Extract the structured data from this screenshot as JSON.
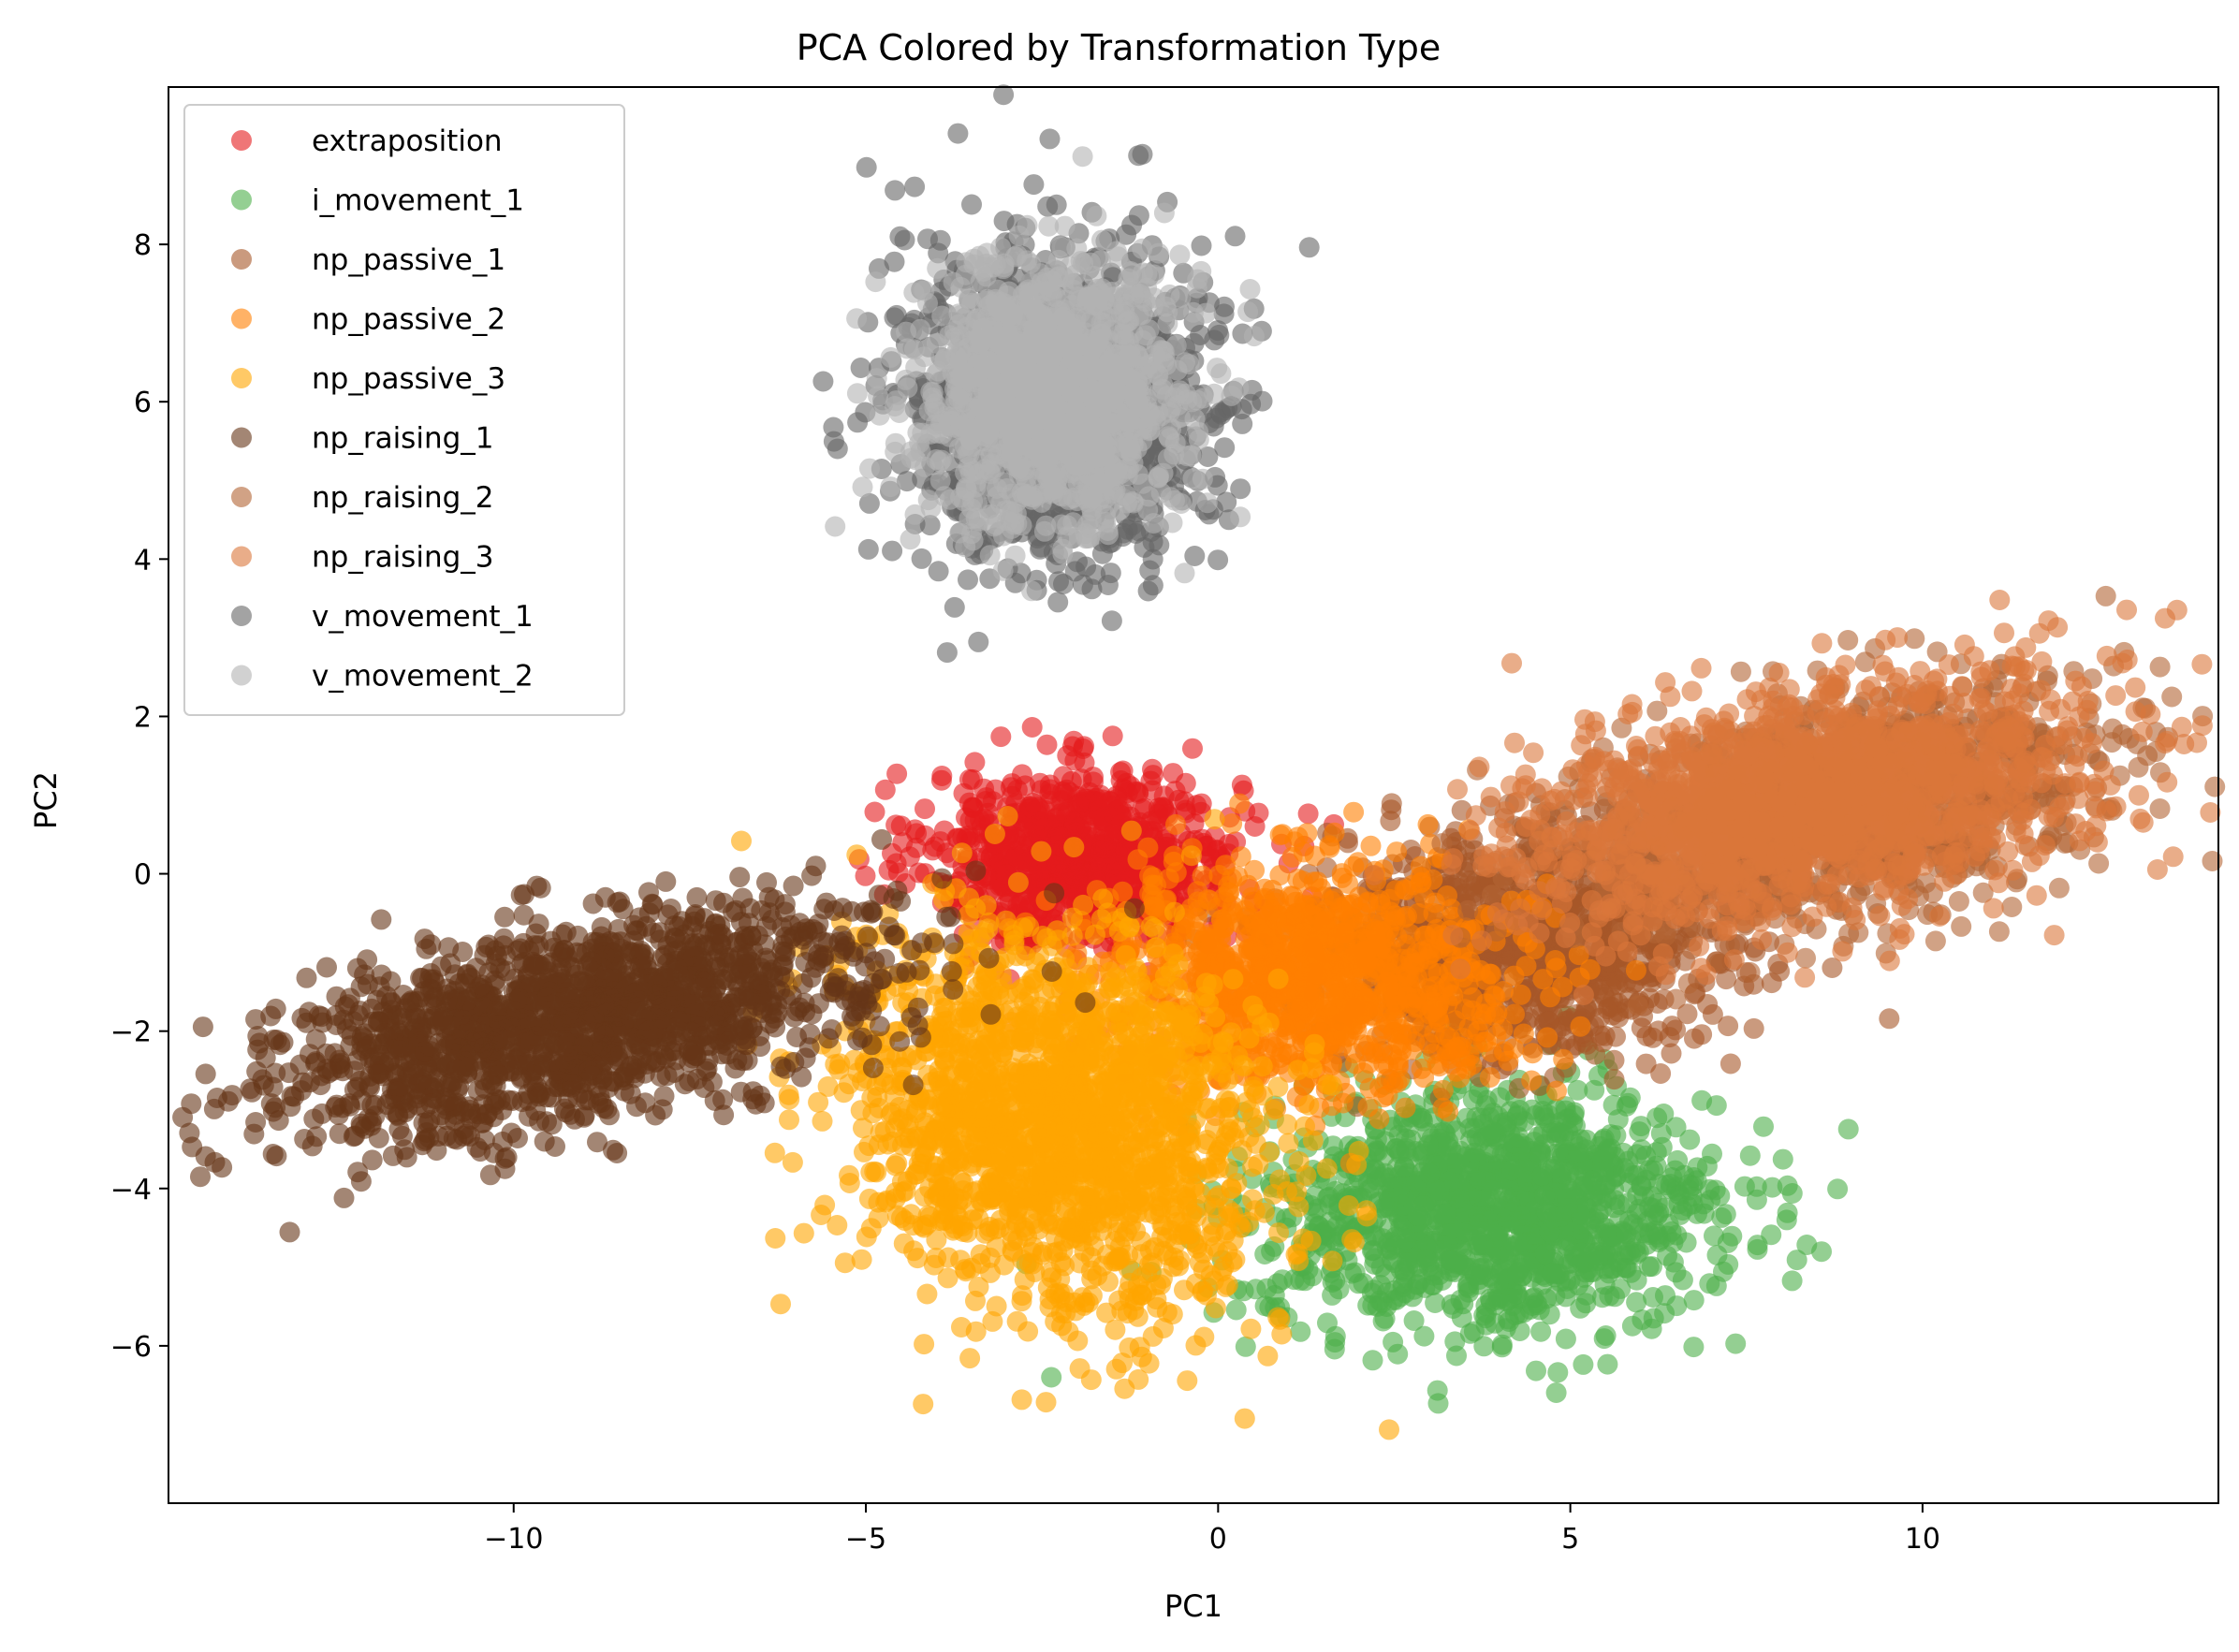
{
  "chart_data": {
    "type": "scatter",
    "title": "PCA Colored by Transformation Type",
    "xlabel": "PC1",
    "ylabel": "PC2",
    "xlim": [
      -14.9,
      14.2
    ],
    "ylim": [
      -8.0,
      10.0
    ],
    "xticks": [
      -10,
      -5,
      0,
      5,
      10
    ],
    "xtick_labels": [
      "−10",
      "−5",
      "0",
      "5",
      "10"
    ],
    "yticks": [
      -6,
      -4,
      -2,
      0,
      2,
      4,
      6,
      8
    ],
    "ytick_labels": [
      "−6",
      "−4",
      "−2",
      "0",
      "2",
      "4",
      "6",
      "8"
    ],
    "grid": false,
    "legend_position": "top-left",
    "marker_alpha": 0.6,
    "series": [
      {
        "name": "extraposition",
        "color": "#e41a1c",
        "approx_center": [
          -1.9,
          0.2
        ],
        "approx_spread": [
          1.1,
          0.55
        ],
        "approx_points": 900
      },
      {
        "name": "i_movement_1",
        "color": "#4daf4a",
        "approx_center": [
          3.9,
          -4.3
        ],
        "approx_spread": [
          1.6,
          0.75
        ],
        "approx_points": 1400
      },
      {
        "name": "np_passive_1",
        "color": "#a65628",
        "approx_center": [
          4.3,
          -0.9
        ],
        "approx_spread": [
          1.4,
          0.7
        ],
        "approx_points": 1100
      },
      {
        "name": "np_passive_2",
        "color": "#ff7f00",
        "approx_center": [
          1.3,
          -1.3
        ],
        "approx_spread": [
          1.5,
          0.7
        ],
        "approx_points": 1100
      },
      {
        "name": "np_passive_3",
        "color": "#ffa500",
        "approx_center": [
          -2.3,
          -3.2
        ],
        "approx_spread": [
          1.5,
          1.2
        ],
        "approx_points": 1800
      },
      {
        "name": "np_raising_1",
        "color": "#663517",
        "approx_center": [
          -9.2,
          -1.9
        ],
        "approx_spread": [
          2.2,
          0.6
        ],
        "approx_points": 1600
      },
      {
        "name": "np_raising_2",
        "color": "#b26433",
        "approx_center": [
          8.6,
          0.8
        ],
        "approx_spread": [
          1.9,
          0.7
        ],
        "approx_points": 1200
      },
      {
        "name": "np_raising_3",
        "color": "#db773a",
        "approx_center": [
          8.3,
          0.9
        ],
        "approx_spread": [
          2.0,
          0.7
        ],
        "approx_points": 1600
      },
      {
        "name": "v_movement_1",
        "color": "#666666",
        "approx_center": [
          -2.3,
          6.0
        ],
        "approx_spread": [
          1.1,
          1.0
        ],
        "approx_points": 1300
      },
      {
        "name": "v_movement_2",
        "color": "#b3b3b3",
        "approx_center": [
          -2.4,
          6.1
        ],
        "approx_spread": [
          0.9,
          0.8
        ],
        "approx_points": 1400
      }
    ]
  }
}
